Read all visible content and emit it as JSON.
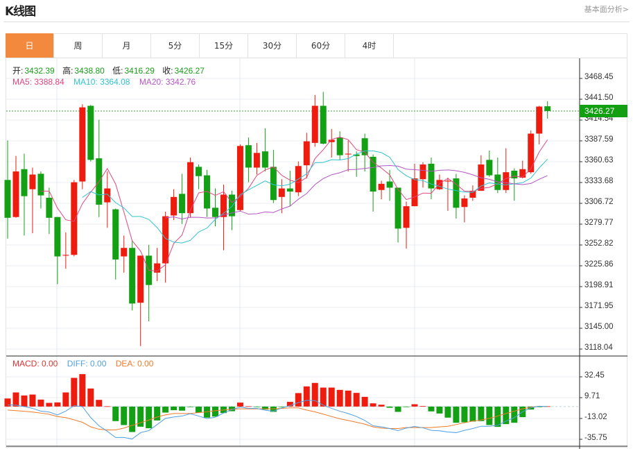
{
  "header": {
    "title": "K线图",
    "fundamental_link": "基本面分析>"
  },
  "tabs": [
    {
      "label": "日",
      "active": true
    },
    {
      "label": "周"
    },
    {
      "label": "月"
    },
    {
      "label": "5分"
    },
    {
      "label": "15分"
    },
    {
      "label": "30分"
    },
    {
      "label": "60分"
    },
    {
      "label": "4时"
    }
  ],
  "ohlc_info": {
    "open_label": "开:",
    "open": "3432.39",
    "high_label": "高:",
    "high": "3438.80",
    "low_label": "低:",
    "low": "3416.29",
    "close_label": "收:",
    "close": "3426.27"
  },
  "ma_info": {
    "ma5": "MA5: 3388.84",
    "ma10": "MA10: 3364.08",
    "ma20": "MA20: 3342.76"
  },
  "macd_info": {
    "macd": "MACD: 0.00",
    "diff": "DIFF: 0.00",
    "dea": "DEA: 0.00"
  },
  "current_price": "3426.27",
  "colors": {
    "up": "#ee1c0e",
    "down": "#14a014",
    "ma5": "#e2457d",
    "ma10": "#2fc3d0",
    "ma20": "#b456c2",
    "diff": "#4f9fe3",
    "dea": "#f07a28",
    "active_tab": "#f2893d"
  },
  "chart_data": [
    {
      "type": "candlestick",
      "price_ticks": [
        "3468.45",
        "3441.50",
        "3414.54",
        "3387.59",
        "3360.63",
        "3333.68",
        "3306.72",
        "3279.77",
        "3252.82",
        "3225.86",
        "3198.91",
        "3171.95",
        "3145.00",
        "3118.04"
      ],
      "ylim": [
        3118.04,
        3468.45
      ],
      "grid": true,
      "ohlc": [
        [
          3337,
          3388,
          3261,
          3288
        ],
        [
          3289,
          3368,
          3288,
          3348
        ],
        [
          3351,
          3371,
          3265,
          3316
        ],
        [
          3325,
          3353,
          3268,
          3344
        ],
        [
          3345,
          3348,
          3300,
          3317
        ],
        [
          3314,
          3327,
          3267,
          3288
        ],
        [
          3289,
          3289,
          3202,
          3238
        ],
        [
          3239,
          3269,
          3222,
          3240
        ],
        [
          3240,
          3337,
          3238,
          3334
        ],
        [
          3335,
          3435,
          3325,
          3431
        ],
        [
          3433,
          3434,
          3361,
          3363
        ],
        [
          3365,
          3415,
          3289,
          3305
        ],
        [
          3308,
          3348,
          3275,
          3326
        ],
        [
          3299,
          3300,
          3208,
          3234
        ],
        [
          3238,
          3265,
          3217,
          3249
        ],
        [
          3249,
          3258,
          3168,
          3177
        ],
        [
          3178,
          3239,
          3122,
          3239
        ],
        [
          3239,
          3253,
          3154,
          3201
        ],
        [
          3217,
          3249,
          3206,
          3229
        ],
        [
          3229,
          3296,
          3204,
          3290
        ],
        [
          3291,
          3325,
          3285,
          3315
        ],
        [
          3319,
          3345,
          3280,
          3294
        ],
        [
          3294,
          3366,
          3288,
          3360
        ],
        [
          3354,
          3357,
          3325,
          3342
        ],
        [
          3343,
          3350,
          3289,
          3300
        ],
        [
          3301,
          3326,
          3277,
          3289
        ],
        [
          3289,
          3331,
          3246,
          3318
        ],
        [
          3318,
          3323,
          3272,
          3290
        ],
        [
          3298,
          3383,
          3296,
          3381
        ],
        [
          3382,
          3392,
          3334,
          3353
        ],
        [
          3353,
          3385,
          3344,
          3372
        ],
        [
          3374,
          3404,
          3348,
          3353
        ],
        [
          3354,
          3376,
          3307,
          3311
        ],
        [
          3315,
          3338,
          3294,
          3326
        ],
        [
          3326,
          3349,
          3303,
          3322
        ],
        [
          3321,
          3361,
          3316,
          3355
        ],
        [
          3356,
          3398,
          3339,
          3387
        ],
        [
          3385,
          3447,
          3380,
          3433
        ],
        [
          3433,
          3451,
          3383,
          3384
        ],
        [
          3386,
          3403,
          3366,
          3389
        ],
        [
          3392,
          3400,
          3363,
          3369
        ],
        [
          3370,
          3388,
          3348,
          3371
        ],
        [
          3370,
          3374,
          3341,
          3368
        ],
        [
          3391,
          3397,
          3348,
          3369
        ],
        [
          3367,
          3370,
          3296,
          3322
        ],
        [
          3324,
          3336,
          3312,
          3332
        ],
        [
          3335,
          3350,
          3310,
          3327
        ],
        [
          3327,
          3327,
          3256,
          3274
        ],
        [
          3275,
          3309,
          3248,
          3303
        ],
        [
          3303,
          3358,
          3303,
          3339
        ],
        [
          3338,
          3360,
          3327,
          3357
        ],
        [
          3358,
          3366,
          3312,
          3326
        ],
        [
          3325,
          3344,
          3324,
          3337
        ],
        [
          3335,
          3340,
          3297,
          3336
        ],
        [
          3339,
          3345,
          3287,
          3301
        ],
        [
          3302,
          3317,
          3282,
          3313
        ],
        [
          3314,
          3330,
          3310,
          3323
        ],
        [
          3323,
          3369,
          3323,
          3357
        ],
        [
          3363,
          3375,
          3341,
          3343
        ],
        [
          3344,
          3366,
          3320,
          3324
        ],
        [
          3324,
          3378,
          3320,
          3347
        ],
        [
          3349,
          3352,
          3310,
          3339
        ],
        [
          3340,
          3362,
          3339,
          3351
        ],
        [
          3347,
          3401,
          3345,
          3397
        ],
        [
          3397,
          3433,
          3383,
          3432
        ],
        [
          3432.39,
          3438.8,
          3416.29,
          3426.27
        ]
      ],
      "moving_averages": [
        "MA5",
        "MA10",
        "MA20"
      ]
    },
    {
      "type": "bar+line",
      "name": "MACD",
      "y_ticks": [
        "32.45",
        "9.71",
        "-13.02",
        "-35.75"
      ],
      "macd": [
        8.8,
        15.4,
        12.1,
        13.1,
        7.6,
        4.0,
        4.5,
        15.4,
        31.3,
        35.4,
        19.7,
        7.3,
        0.3,
        -15.9,
        -20.2,
        -27.8,
        -22.0,
        -23.7,
        -15.2,
        -6.6,
        -4.0,
        -4.5,
        -0.5,
        -6.6,
        -12.1,
        -10.9,
        -7.1,
        -5.1,
        4.3,
        0.3,
        -0.3,
        -3.3,
        -5.8,
        -0.5,
        5.1,
        14.7,
        22.0,
        25.8,
        20.7,
        20.7,
        18.2,
        17.4,
        14.9,
        10.6,
        3.5,
        2.0,
        -1.3,
        -5.8,
        -0.3,
        2.5,
        0.5,
        -5.3,
        -7.6,
        -12.1,
        -17.7,
        -17.2,
        -16.4,
        -15.9,
        -20.2,
        -22.2,
        -19.2,
        -17.7,
        -11.6,
        -3.3,
        -0.3,
        0.3
      ],
      "diff": [
        1.8,
        1.5,
        0,
        -2,
        -5,
        -6,
        -9.1,
        -5,
        1.0,
        0,
        -12,
        -21,
        -27,
        -33.8,
        -33.8,
        -35.4,
        -28.5,
        -26.3,
        -19.7,
        -12.9,
        -11.4,
        -10.4,
        -7.8,
        -10.4,
        -13.1,
        -11.6,
        -7.1,
        -3.3,
        -0.5,
        -2.0,
        -2.0,
        -4.0,
        -5.1,
        -1.5,
        1.0,
        4.3,
        6.8,
        6.5,
        1.5,
        -2,
        -5.1,
        -7.6,
        -10.9,
        -15.2,
        -21.0,
        -22.2,
        -24.0,
        -26.3,
        -23.5,
        -21.7,
        -23.2,
        -26.0,
        -26.5,
        -27.8,
        -28.5,
        -26.0,
        -24.0,
        -21.5,
        -21.5,
        -20.5,
        -15.9,
        -12.1,
        -5.8,
        -1.3,
        0.3,
        0.0
      ],
      "dea": [
        -3.8,
        -4.5,
        -5.2,
        -6,
        -7.1,
        -8.5,
        -10.9,
        -12.1,
        -14.5,
        -17.2,
        -22.2,
        -24.8,
        -25.5,
        -25.5,
        -23.5,
        -20.5,
        -17.7,
        -14.7,
        -11.4,
        -9.1,
        -7.6,
        -7.6,
        -7.6,
        -6.6,
        -5.8,
        -4.5,
        -3.8,
        -2.8,
        -2.5,
        -2.5,
        -2.5,
        -2.5,
        -2.5,
        -2.0,
        -1.5,
        -1.5,
        -3.8,
        -5.8,
        -8.3,
        -10.9,
        -13.4,
        -15.2,
        -17.2,
        -19.2,
        -22.2,
        -23.5,
        -24,
        -24,
        -23,
        -23,
        -23,
        -23,
        -22.2,
        -21.5,
        -19.7,
        -17.7,
        -15.9,
        -14.7,
        -12.9,
        -10.4,
        -7.6,
        -5.1,
        -2.5,
        -0.8,
        0.3,
        0.0
      ],
      "ylim": [
        -35.75,
        32.45
      ]
    }
  ]
}
